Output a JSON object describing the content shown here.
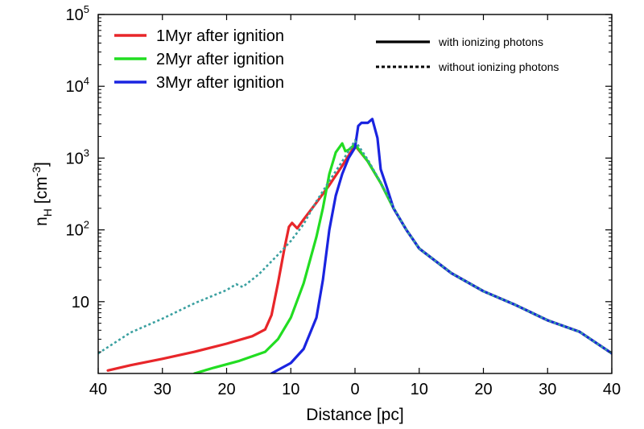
{
  "chart_data": {
    "type": "line",
    "title": "",
    "xlabel": "Distance [pc]",
    "ylabel": "n_H [cm^-3]",
    "ylabel_parts": {
      "n": "n",
      "sub": "H",
      "open": " [cm",
      "sup": "-3",
      "close": "]"
    },
    "xscale": "linear",
    "yscale": "log",
    "xlim": [
      -40,
      40
    ],
    "ylim": [
      1,
      100000
    ],
    "x_ticks": [
      -40,
      -30,
      -20,
      -10,
      0,
      10,
      20,
      30,
      40
    ],
    "x_tick_labels": [
      "40",
      "30",
      "20",
      "10",
      "0",
      "10",
      "20",
      "30",
      "40"
    ],
    "y_ticks": [
      10,
      100,
      1000,
      10000,
      100000
    ],
    "y_tick_labels": [
      {
        "base": "10",
        "exp": ""
      },
      {
        "base": "10",
        "exp": "2"
      },
      {
        "base": "10",
        "exp": "3"
      },
      {
        "base": "10",
        "exp": "4"
      },
      {
        "base": "10",
        "exp": "5"
      }
    ],
    "grid": false,
    "legend_placement": "top-left",
    "style_legend_placement": "top-right",
    "style_legend": [
      {
        "label": "with ionizing photons",
        "style": "solid"
      },
      {
        "label": "without ionizing photons",
        "style": "dashed"
      }
    ],
    "series": [
      {
        "name": "1Myr after ignition",
        "color": "#e8262a",
        "style": "solid",
        "x": [
          -38.5,
          -35,
          -30,
          -25,
          -20,
          -16,
          -14,
          -13,
          -12,
          -11,
          -10.3,
          -9.8,
          -9,
          -8,
          -6,
          -4,
          -2,
          0,
          2,
          4,
          6,
          8,
          10,
          15,
          20,
          25,
          30,
          35,
          40
        ],
        "y": [
          1.1,
          1.3,
          1.6,
          2.0,
          2.6,
          3.3,
          4.1,
          6.5,
          18,
          55,
          110,
          125,
          105,
          140,
          240,
          420,
          780,
          1500,
          900,
          450,
          200,
          100,
          55,
          25,
          14,
          9,
          5.5,
          3.8,
          1.9
        ]
      },
      {
        "name": "2Myr after ignition",
        "color": "#22dd22",
        "style": "solid",
        "x": [
          -25,
          -22,
          -18,
          -14,
          -12,
          -10,
          -8,
          -6,
          -5,
          -4,
          -3,
          -2,
          -1.5,
          -1,
          0,
          2,
          4,
          6,
          8,
          10,
          15,
          20,
          25,
          30,
          35,
          40
        ],
        "y": [
          1.0,
          1.2,
          1.5,
          2.0,
          3.0,
          6.0,
          18,
          80,
          200,
          600,
          1200,
          1600,
          1250,
          1300,
          1550,
          900,
          450,
          200,
          100,
          55,
          25,
          14,
          9,
          5.5,
          3.8,
          1.9
        ]
      },
      {
        "name": "3Myr after ignition",
        "color": "#1a24e0",
        "style": "solid",
        "x": [
          -13,
          -10,
          -8,
          -6,
          -5,
          -4,
          -3,
          -2,
          -1,
          0,
          0.5,
          1,
          2,
          2.7,
          3.5,
          4,
          5,
          6,
          8,
          10,
          15,
          20,
          25,
          30,
          35,
          40
        ],
        "y": [
          1.0,
          1.4,
          2.2,
          6,
          20,
          100,
          300,
          600,
          1000,
          1400,
          2800,
          3100,
          3100,
          3500,
          1900,
          700,
          380,
          200,
          100,
          55,
          25,
          14,
          9,
          5.5,
          3.8,
          1.9
        ]
      },
      {
        "name": "",
        "color": "#3aa0a0",
        "style": "dashed",
        "x": [
          -40,
          -35,
          -30,
          -25,
          -20,
          -18.5,
          -17.5,
          -15,
          -12,
          -10,
          -8,
          -6,
          -4,
          -2,
          0,
          2,
          4,
          6,
          8,
          10,
          15,
          20,
          25,
          30,
          35,
          40
        ],
        "y": [
          1.9,
          3.7,
          5.8,
          9.5,
          14.5,
          17.5,
          16,
          24,
          45,
          70,
          120,
          250,
          480,
          900,
          1750,
          950,
          460,
          205,
          100,
          55,
          25,
          14,
          9,
          5.5,
          3.8,
          1.9
        ]
      }
    ]
  }
}
